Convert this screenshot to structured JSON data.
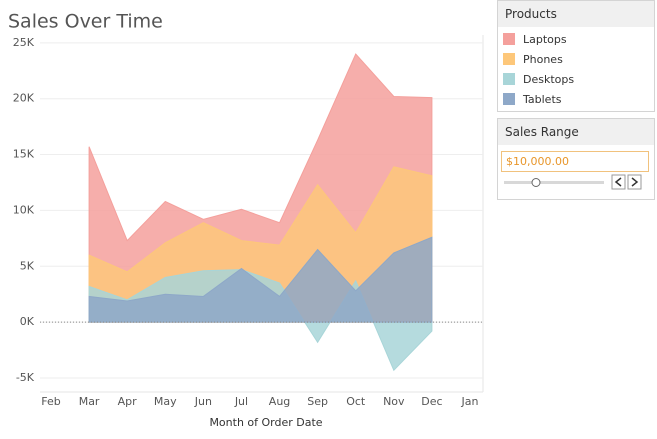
{
  "chart_data": {
    "type": "area",
    "title": "Sales Over Time",
    "x_label": "Month of Order Date",
    "legend_title": "Products",
    "categories": [
      "Feb",
      "Mar",
      "Apr",
      "May",
      "Jun",
      "Jul",
      "Aug",
      "Sep",
      "Oct",
      "Nov",
      "Dec",
      "Jan"
    ],
    "series": [
      {
        "name": "Laptops",
        "color": "#f4a09c",
        "values": [
          null,
          15700,
          7300,
          10800,
          9200,
          10100,
          8900,
          16300,
          24000,
          20200,
          20100,
          null
        ]
      },
      {
        "name": "Phones",
        "color": "#fdc77a",
        "values": [
          null,
          6000,
          4500,
          7100,
          8900,
          7300,
          6900,
          12300,
          8000,
          13900,
          13100,
          null
        ]
      },
      {
        "name": "Desktops",
        "color": "#a8d5d8",
        "values": [
          null,
          3200,
          2000,
          4000,
          4600,
          4700,
          3500,
          -1800,
          3700,
          -4300,
          -800,
          null
        ]
      },
      {
        "name": "Tablets",
        "color": "#8ea8c8",
        "values": [
          null,
          2300,
          1900,
          2500,
          2300,
          4800,
          2300,
          6500,
          2800,
          6200,
          7600,
          null
        ]
      }
    ],
    "ylim": [
      -6250,
      25700
    ],
    "yticks": [
      {
        "value": -5000,
        "label": "-5K"
      },
      {
        "value": 0,
        "label": "0K"
      },
      {
        "value": 5000,
        "label": "5K"
      },
      {
        "value": 10000,
        "label": "10K"
      },
      {
        "value": 15000,
        "label": "15K"
      },
      {
        "value": 20000,
        "label": "20K"
      },
      {
        "value": 25000,
        "label": "25K"
      }
    ],
    "grid": true
  },
  "filter": {
    "title": "Sales Range",
    "value": "$10,000.00"
  }
}
